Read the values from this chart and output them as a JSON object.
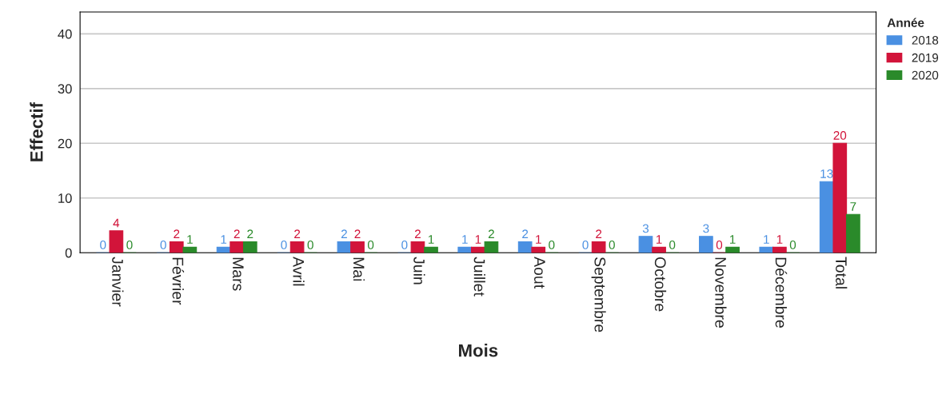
{
  "chart_data": {
    "type": "bar",
    "xlabel": "Mois",
    "ylabel": "Effectif",
    "legend_title": "Année",
    "categories": [
      "Janvier",
      "Février",
      "Mars",
      "Avril",
      "Mai",
      "Juin",
      "Juillet",
      "Aout",
      "Septembre",
      "Octobre",
      "Novembre",
      "Décembre",
      "Total"
    ],
    "series": [
      {
        "name": "2018",
        "color": "#4a90e2",
        "values": [
          0,
          0,
          1,
          0,
          2,
          0,
          1,
          2,
          0,
          3,
          3,
          1,
          13
        ]
      },
      {
        "name": "2019",
        "color": "#d2143a",
        "values": [
          4,
          2,
          2,
          2,
          2,
          2,
          1,
          1,
          2,
          1,
          0,
          1,
          20
        ]
      },
      {
        "name": "2020",
        "color": "#2a8a2a",
        "values": [
          0,
          1,
          2,
          0,
          0,
          1,
          2,
          0,
          0,
          0,
          1,
          0,
          7
        ]
      }
    ],
    "ylim": [
      0,
      44
    ],
    "yticks": [
      0,
      10,
      20,
      30,
      40
    ],
    "grid": "y",
    "legend": "top right",
    "data_labels": true
  }
}
